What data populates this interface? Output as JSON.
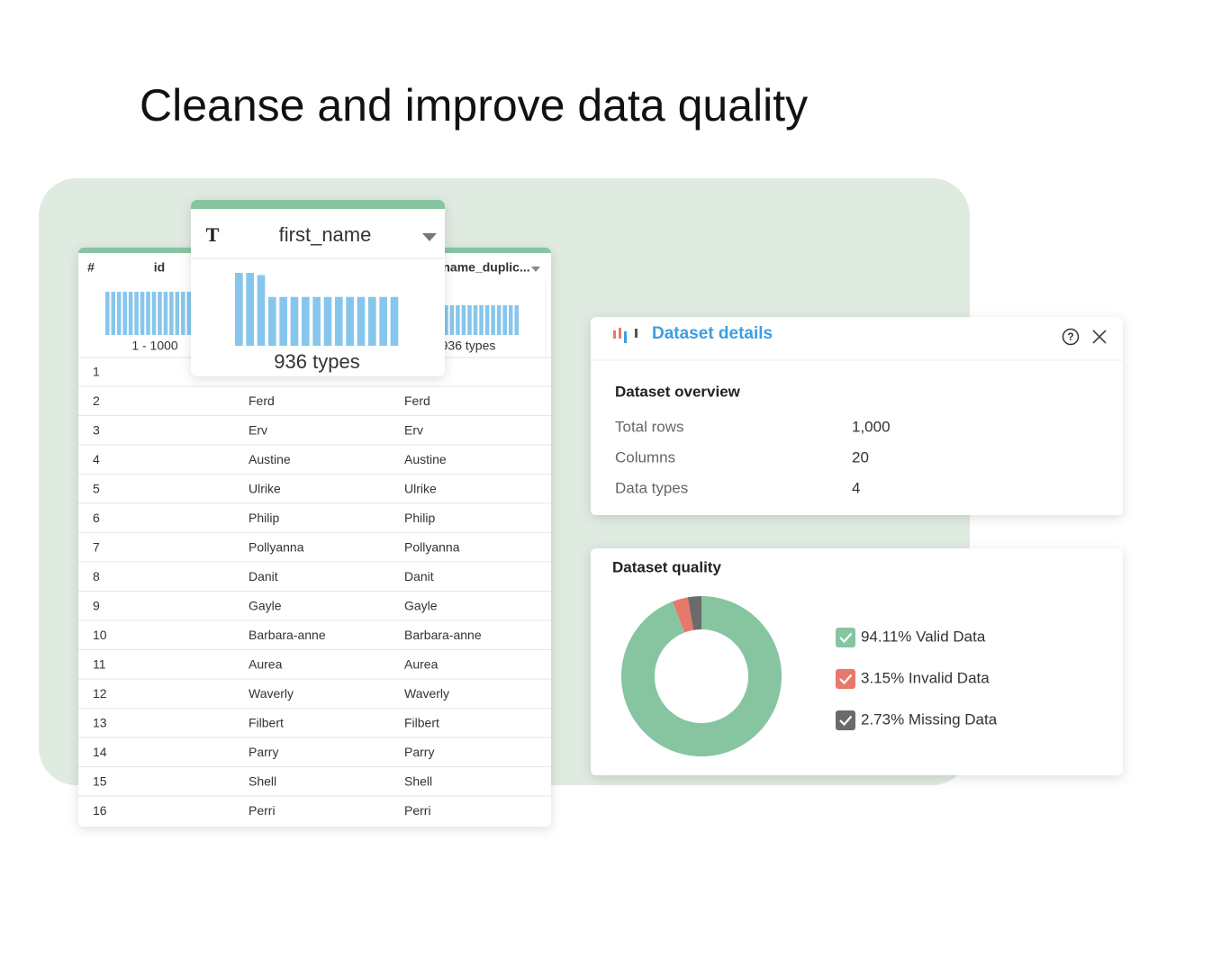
{
  "title": "Cleanse and improve data quality",
  "table": {
    "columns": [
      {
        "icon": "#",
        "name": "id",
        "summary": "1 - 1000",
        "histogram": [
          1,
          1,
          1,
          1,
          1,
          1,
          1,
          1,
          1,
          1,
          1,
          1,
          1,
          1,
          1
        ]
      },
      {
        "icon": "T",
        "name": "first_name",
        "summary": "936 types",
        "histogram": [
          100,
          100,
          97,
          67,
          67,
          67,
          67,
          67,
          67,
          67,
          67,
          67,
          67,
          67,
          67
        ]
      },
      {
        "name": "name_duplic...",
        "summary": "936 types",
        "histogram": [
          1,
          1,
          1,
          1,
          1,
          1,
          1,
          1,
          1,
          1,
          1,
          1,
          1,
          1,
          1
        ]
      }
    ],
    "rows": [
      [
        "1",
        null,
        null
      ],
      [
        "2",
        "Ferd",
        "Ferd"
      ],
      [
        "3",
        "Erv",
        "Erv"
      ],
      [
        "4",
        "Austine",
        "Austine"
      ],
      [
        "5",
        "Ulrike",
        "Ulrike"
      ],
      [
        "6",
        "Philip",
        "Philip"
      ],
      [
        "7",
        "Pollyanna",
        "Pollyanna"
      ],
      [
        "8",
        "Danit",
        "Danit"
      ],
      [
        "9",
        "Gayle",
        "Gayle"
      ],
      [
        "10",
        "Barbara-anne",
        "Barbara-anne"
      ],
      [
        "11",
        "Aurea",
        "Aurea"
      ],
      [
        "12",
        "Waverly",
        "Waverly"
      ],
      [
        "13",
        "Filbert",
        "Filbert"
      ],
      [
        "14",
        "Parry",
        "Parry"
      ],
      [
        "15",
        "Shell",
        "Shell"
      ],
      [
        "16",
        "Perri",
        "Perri"
      ]
    ]
  },
  "details": {
    "title": "Dataset details",
    "section": "Dataset overview",
    "items": [
      {
        "label": "Total rows",
        "value": "1,000"
      },
      {
        "label": "Columns",
        "value": "20"
      },
      {
        "label": "Data types",
        "value": "4"
      }
    ]
  },
  "quality": {
    "title": "Dataset quality",
    "type": "donut",
    "segments": [
      {
        "value": 94.11,
        "label": "94.11% Valid Data",
        "color": "#86c5a0"
      },
      {
        "value": 3.15,
        "label": "3.15% Invalid Data",
        "color": "#e8786c"
      },
      {
        "value": 2.73,
        "label": "2.73% Missing Data",
        "color": "#6b6b6b"
      }
    ]
  }
}
